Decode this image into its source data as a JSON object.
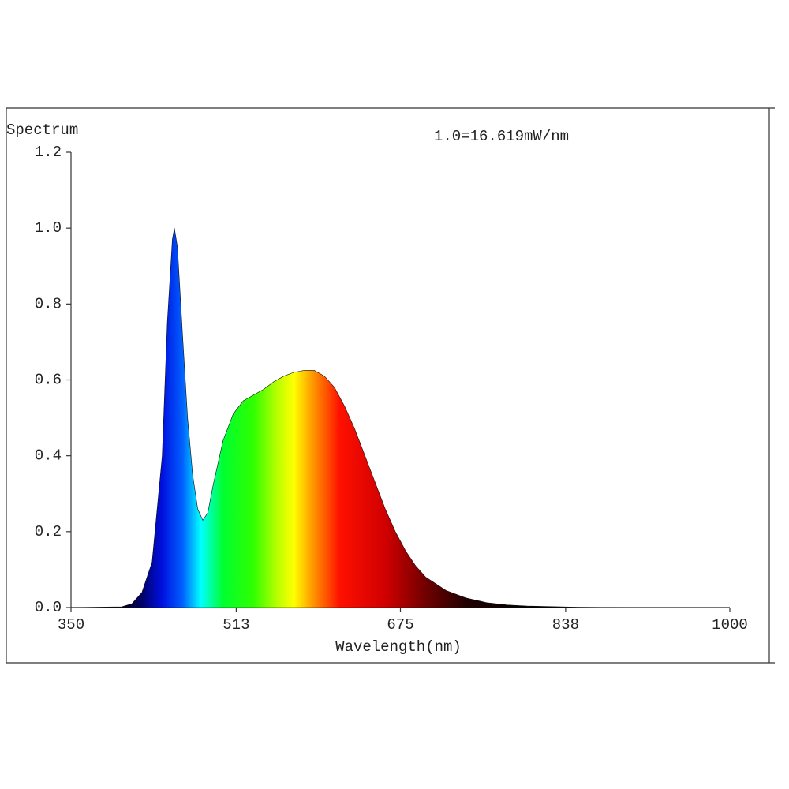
{
  "chart_data": {
    "type": "area",
    "title": "Spectrum",
    "annotation": "1.0=16.619mW/nm",
    "x_label": "Wavelength(nm)",
    "x": [
      350,
      400,
      410,
      420,
      430,
      440,
      445,
      450,
      452,
      455,
      460,
      465,
      470,
      475,
      480,
      485,
      490,
      500,
      510,
      520,
      530,
      540,
      550,
      560,
      570,
      580,
      590,
      600,
      610,
      620,
      630,
      640,
      650,
      660,
      670,
      680,
      690,
      700,
      720,
      740,
      760,
      780,
      800,
      850,
      900,
      1000
    ],
    "values": [
      0,
      0.002,
      0.01,
      0.04,
      0.12,
      0.4,
      0.75,
      0.97,
      1.0,
      0.95,
      0.72,
      0.5,
      0.35,
      0.26,
      0.23,
      0.25,
      0.32,
      0.44,
      0.51,
      0.545,
      0.56,
      0.575,
      0.595,
      0.61,
      0.62,
      0.625,
      0.625,
      0.61,
      0.58,
      0.53,
      0.47,
      0.4,
      0.33,
      0.26,
      0.2,
      0.15,
      0.11,
      0.08,
      0.045,
      0.025,
      0.013,
      0.007,
      0.004,
      0.001,
      0,
      0
    ],
    "fill_gradient": [
      {
        "x": 400,
        "color": "#000010"
      },
      {
        "x": 420,
        "color": "#00006a"
      },
      {
        "x": 440,
        "color": "#0010e0"
      },
      {
        "x": 460,
        "color": "#0060ff"
      },
      {
        "x": 478,
        "color": "#00ffff"
      },
      {
        "x": 500,
        "color": "#00ff30"
      },
      {
        "x": 530,
        "color": "#30ff00"
      },
      {
        "x": 555,
        "color": "#c0ff00"
      },
      {
        "x": 570,
        "color": "#ffff00"
      },
      {
        "x": 590,
        "color": "#ff9000"
      },
      {
        "x": 615,
        "color": "#ff1000"
      },
      {
        "x": 660,
        "color": "#d00000"
      },
      {
        "x": 700,
        "color": "#700000"
      },
      {
        "x": 740,
        "color": "#200000"
      },
      {
        "x": 800,
        "color": "#000000"
      }
    ],
    "xlim": [
      350,
      1000
    ],
    "xticks": [
      350,
      513,
      675,
      838,
      1000
    ],
    "ylim": [
      0,
      1.2
    ],
    "yticks": [
      {
        "value": 0,
        "label": "0.0"
      },
      0.2,
      0.4,
      0.6,
      0.8,
      {
        "value": 1,
        "label": "1.0"
      },
      1.2
    ]
  }
}
